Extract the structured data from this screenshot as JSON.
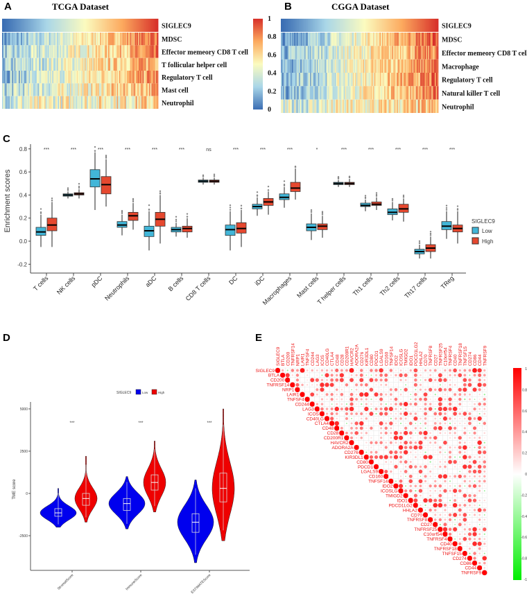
{
  "panels": {
    "a": "A",
    "b": "B",
    "c": "C",
    "d": "D",
    "e": "E"
  },
  "chart_data": [
    {
      "panel": "A",
      "type": "heatmap",
      "title": "TCGA Dataset",
      "rows": [
        "SIGLEC9",
        "MDSC",
        "Effector memeory CD8 T cell",
        "T follicular helper cell",
        "Regulatory T cell",
        "Mast cell",
        "Neutrophil"
      ],
      "colorbar": {
        "min": 0,
        "max": 1,
        "ticks": [
          "0",
          "0.2",
          "0.4",
          "0.6",
          "0.8",
          "1"
        ],
        "colors": [
          "#3a6db3",
          "#a9d6e8",
          "#fbfbbf",
          "#fcaa5f",
          "#d7302a"
        ]
      },
      "row_correlation_strength": [
        1,
        0.8,
        0.6,
        0.55,
        0.6,
        0.45,
        0.25
      ]
    },
    {
      "panel": "B",
      "type": "heatmap",
      "title": "CGGA Dataset",
      "rows": [
        "SIGLEC9",
        "MDSC",
        "Effector memeory CD8 T cell",
        "Macrophage",
        "Regulatory T cell",
        "Natural killer T cell",
        "Neutrophil"
      ],
      "row_correlation_strength": [
        1,
        0.85,
        0.65,
        0.7,
        0.7,
        0.65,
        0.3
      ]
    },
    {
      "panel": "C",
      "type": "box",
      "ylabel": "Enrichment scores",
      "ylim": [
        -0.25,
        0.82
      ],
      "yticks": [
        "-0.2",
        "0.0",
        "0.2",
        "0.4",
        "0.6",
        "0.8"
      ],
      "legend": {
        "title": "SIGLEC9",
        "items": [
          "Low",
          "High"
        ],
        "colors": [
          "#42b6d8",
          "#e5482f"
        ],
        "placement": "right"
      },
      "categories": [
        "T cells",
        "NK cells",
        "pDC",
        "Neutrophils",
        "aDC",
        "B cells",
        "CD8 T cells",
        "DC",
        "iDC",
        "Macrophages",
        "Mast cells",
        "T helper cells",
        "Th1 cells",
        "Th2 cells",
        "Th17 cells",
        "TReg"
      ],
      "significance": [
        "***",
        "***",
        "***",
        "***",
        "***",
        "***",
        "ns",
        "***",
        "***",
        "***",
        "*",
        "***",
        "***",
        "***",
        "***",
        "***"
      ],
      "series": [
        {
          "name": "Low",
          "boxes": [
            [
              -0.05,
              0.05,
              0.08,
              0.12,
              0.23
            ],
            [
              0.37,
              0.39,
              0.4,
              0.41,
              0.43
            ],
            [
              0.27,
              0.47,
              0.54,
              0.62,
              0.77
            ],
            [
              0.05,
              0.12,
              0.14,
              0.17,
              0.23
            ],
            [
              -0.08,
              0.04,
              0.09,
              0.13,
              0.26
            ],
            [
              0.04,
              0.08,
              0.1,
              0.12,
              0.16
            ],
            [
              0.49,
              0.51,
              0.52,
              0.53,
              0.55
            ],
            [
              -0.08,
              0.05,
              0.1,
              0.14,
              0.26
            ],
            [
              0.22,
              0.28,
              0.3,
              0.32,
              0.38
            ],
            [
              0.29,
              0.36,
              0.38,
              0.41,
              0.47
            ],
            [
              0.01,
              0.09,
              0.12,
              0.15,
              0.24
            ],
            [
              0.47,
              0.49,
              0.5,
              0.51,
              0.53
            ],
            [
              0.26,
              0.3,
              0.31,
              0.33,
              0.36
            ],
            [
              0.18,
              0.23,
              0.25,
              0.28,
              0.34
            ],
            [
              -0.15,
              -0.11,
              -0.09,
              -0.07,
              -0.03
            ],
            [
              0.02,
              0.1,
              0.13,
              0.17,
              0.26
            ]
          ]
        },
        {
          "name": "High",
          "boxes": [
            [
              -0.05,
              0.09,
              0.14,
              0.2,
              0.34
            ],
            [
              0.37,
              0.4,
              0.41,
              0.42,
              0.45
            ],
            [
              0.3,
              0.41,
              0.49,
              0.56,
              0.71
            ],
            [
              0.1,
              0.18,
              0.22,
              0.25,
              0.33
            ],
            [
              -0.02,
              0.13,
              0.19,
              0.25,
              0.4
            ],
            [
              0.03,
              0.08,
              0.11,
              0.13,
              0.2
            ],
            [
              0.49,
              0.51,
              0.52,
              0.53,
              0.55
            ],
            [
              -0.05,
              0.07,
              0.11,
              0.16,
              0.27
            ],
            [
              0.23,
              0.31,
              0.34,
              0.37,
              0.43
            ],
            [
              0.36,
              0.43,
              0.46,
              0.51,
              0.63
            ],
            [
              0.03,
              0.1,
              0.13,
              0.15,
              0.22
            ],
            [
              0.47,
              0.49,
              0.5,
              0.51,
              0.54
            ],
            [
              0.27,
              0.31,
              0.32,
              0.34,
              0.38
            ],
            [
              0.17,
              0.25,
              0.28,
              0.32,
              0.37
            ],
            [
              -0.15,
              -0.09,
              -0.06,
              -0.03,
              0.04
            ],
            [
              -0.02,
              0.08,
              0.11,
              0.14,
              0.26
            ]
          ]
        }
      ]
    },
    {
      "panel": "D",
      "type": "violin",
      "ylabel": "TME score",
      "ylim": [
        -4600,
        5400
      ],
      "yticks": [
        "-2500",
        "0",
        "2500",
        "5000"
      ],
      "legend": {
        "title": "SIGLEC9",
        "items": [
          "Low",
          "High"
        ],
        "colors": [
          "#0000ee",
          "#ee0000"
        ],
        "placement": "top"
      },
      "categories": [
        "StromalScore",
        "ImmuneScore",
        "ESTIMATEScore"
      ],
      "significance": [
        "***",
        "***",
        "***"
      ],
      "series": [
        {
          "name": "Low",
          "violins": [
            [
              -2000,
              -1350,
              -1150,
              -900,
              300
            ],
            [
              -2100,
              -1000,
              -600,
              -300,
              1000
            ],
            [
              -4100,
              -2300,
              -1700,
              -1200,
              800
            ]
          ]
        },
        {
          "name": "High",
          "violins": [
            [
              -1700,
              -700,
              -300,
              0,
              2200
            ],
            [
              -1100,
              200,
              650,
              1100,
              3100
            ],
            [
              -2800,
              -500,
              300,
              1200,
              5000
            ]
          ]
        }
      ]
    },
    {
      "panel": "E",
      "type": "heatmap",
      "subtype": "correlation-upper-triangle",
      "genes": [
        "SIGLEC9",
        "BTLA",
        "CD200",
        "TNFRSF14",
        "NRP1",
        "LAIR1",
        "TNFSF4",
        "CD244",
        "LAG3",
        "ICOS",
        "CD40LG",
        "CTLA4",
        "CD48",
        "CD28",
        "CD200R1",
        "HAVCR2",
        "ADORA2A",
        "CD276",
        "KIR3DL1",
        "CD80",
        "PDCD1",
        "LGALS9",
        "CD160",
        "TNFSF14",
        "IDO2",
        "ICOSLG",
        "TMIGD2",
        "IDO1",
        "PDCD1LG2",
        "HHLA2",
        "CD70",
        "TNFRSF8",
        "CD27",
        "TNFRSF25",
        "C10orf54",
        "TNFRSF4",
        "CD40",
        "TNFRSF18",
        "TNFSF15",
        "CD274",
        "CD86",
        "CD44",
        "TNFRSF9"
      ],
      "siglec9_correlations": [
        1,
        0.3,
        -0.1,
        0.5,
        0.4,
        0.9,
        0.2,
        0.3,
        0.2,
        0.3,
        0.3,
        0.3,
        0.6,
        0.4,
        0.4,
        0.9,
        0.1,
        0.5,
        0.1,
        0.5,
        0.5,
        0.8,
        0.1,
        0.5,
        0.1,
        0.2,
        0.1,
        0.3,
        0.7,
        0.1,
        0.3,
        0.3,
        0.4,
        0.1,
        0.3,
        0.4,
        0.7,
        0.3,
        0.4,
        0.4,
        0.9,
        0.8,
        0.3
      ],
      "colorbar": {
        "min": -1,
        "max": 1,
        "ticks": [
          "1",
          "0.8",
          "0.6",
          "0.4",
          "0.2",
          "0",
          "-0.2",
          "-0.4",
          "-0.6",
          "-0.8",
          "-1"
        ],
        "positive": "#ff0000",
        "negative": "#00e000"
      }
    }
  ]
}
